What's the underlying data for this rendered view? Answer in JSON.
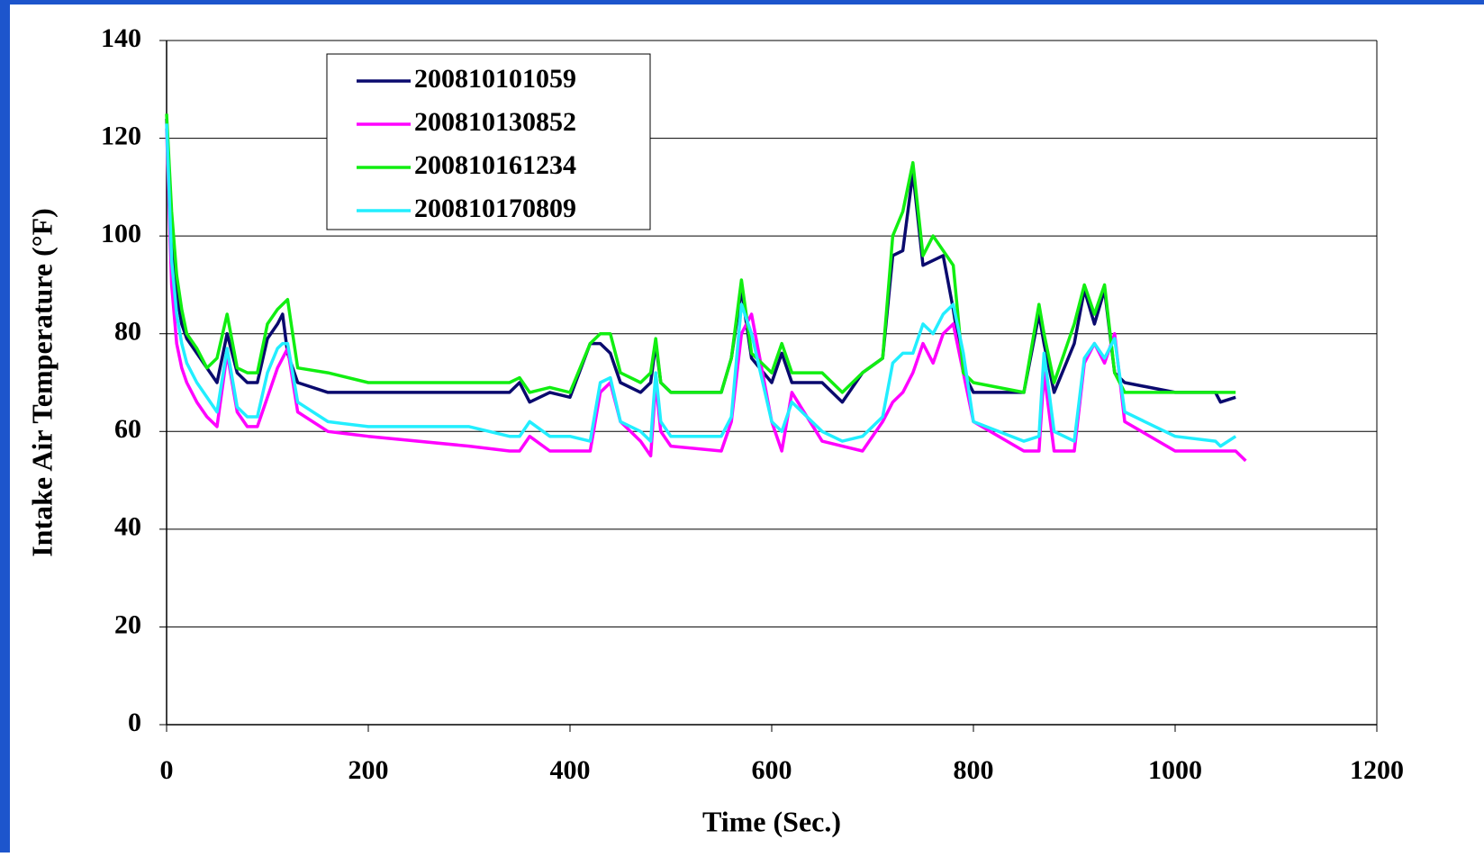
{
  "chart_data": {
    "type": "line",
    "xlabel": "Time (Sec.)",
    "ylabel": "Intake Air Temperature (°F)",
    "x": [
      0,
      5,
      10,
      15,
      20,
      30,
      40,
      50,
      60,
      70,
      80,
      90,
      100,
      110,
      115,
      120,
      130,
      160,
      200,
      300,
      340,
      350,
      360,
      380,
      400,
      420,
      430,
      440,
      450,
      470,
      480,
      485,
      490,
      500,
      550,
      560,
      570,
      580,
      600,
      610,
      620,
      650,
      670,
      690,
      710,
      720,
      730,
      740,
      750,
      760,
      770,
      780,
      790,
      800,
      850,
      865,
      870,
      880,
      900,
      910,
      920,
      930,
      940,
      950,
      1000,
      1040,
      1045,
      1060,
      1070
    ],
    "series": [
      {
        "name": "200810101059",
        "color": "#0a0a6e",
        "values": [
          124,
          100,
          88,
          82,
          79,
          76,
          73,
          70,
          80,
          72,
          70,
          70,
          79,
          82,
          84,
          76,
          70,
          68,
          68,
          68,
          68,
          70,
          66,
          68,
          67,
          78,
          78,
          76,
          70,
          68,
          70,
          78,
          70,
          68,
          68,
          75,
          89,
          75,
          70,
          76,
          70,
          70,
          66,
          72,
          75,
          96,
          97,
          113,
          94,
          95,
          96,
          85,
          72,
          68,
          68,
          84,
          78,
          68,
          78,
          89,
          82,
          89,
          72,
          70,
          68,
          68,
          66,
          67,
          null
        ]
      },
      {
        "name": "200810130852",
        "color": "#ff00ff",
        "values": [
          122,
          90,
          78,
          73,
          70,
          66,
          63,
          61,
          76,
          64,
          61,
          61,
          67,
          73,
          75,
          77,
          64,
          60,
          59,
          57,
          56,
          56,
          59,
          56,
          56,
          56,
          68,
          70,
          62,
          58,
          55,
          70,
          60,
          57,
          56,
          62,
          80,
          84,
          62,
          56,
          68,
          58,
          57,
          56,
          62,
          66,
          68,
          72,
          78,
          74,
          80,
          82,
          72,
          62,
          56,
          56,
          72,
          56,
          56,
          74,
          78,
          74,
          80,
          62,
          56,
          56,
          56,
          56,
          54
        ]
      },
      {
        "name": "200810161234",
        "color": "#11ee11",
        "values": [
          125,
          105,
          92,
          85,
          80,
          77,
          73,
          75,
          84,
          73,
          72,
          72,
          82,
          85,
          86,
          87,
          73,
          72,
          70,
          70,
          70,
          71,
          68,
          69,
          68,
          78,
          80,
          80,
          72,
          70,
          72,
          79,
          70,
          68,
          68,
          75,
          91,
          76,
          72,
          78,
          72,
          72,
          68,
          72,
          75,
          100,
          105,
          115,
          96,
          100,
          97,
          94,
          72,
          70,
          68,
          86,
          80,
          70,
          82,
          90,
          84,
          90,
          72,
          68,
          68,
          68,
          68,
          68,
          null
        ]
      },
      {
        "name": "200810170809",
        "color": "#22eeff",
        "values": [
          123,
          95,
          84,
          78,
          74,
          70,
          67,
          64,
          77,
          65,
          63,
          63,
          72,
          77,
          78,
          78,
          66,
          62,
          61,
          61,
          59,
          59,
          62,
          59,
          59,
          58,
          70,
          71,
          62,
          60,
          58,
          72,
          62,
          59,
          59,
          63,
          86,
          80,
          62,
          60,
          66,
          60,
          58,
          59,
          63,
          74,
          76,
          76,
          82,
          80,
          84,
          86,
          76,
          62,
          58,
          59,
          76,
          60,
          58,
          75,
          78,
          75,
          79,
          64,
          59,
          58,
          57,
          59,
          null
        ]
      }
    ],
    "xlim": [
      0,
      1200
    ],
    "xticks": [
      0,
      200,
      400,
      600,
      800,
      1000,
      1200
    ],
    "ylim": [
      0,
      140
    ],
    "yticks": [
      0,
      20,
      40,
      60,
      80,
      100,
      120,
      140
    ],
    "grid": true,
    "legend": "upper-left"
  }
}
